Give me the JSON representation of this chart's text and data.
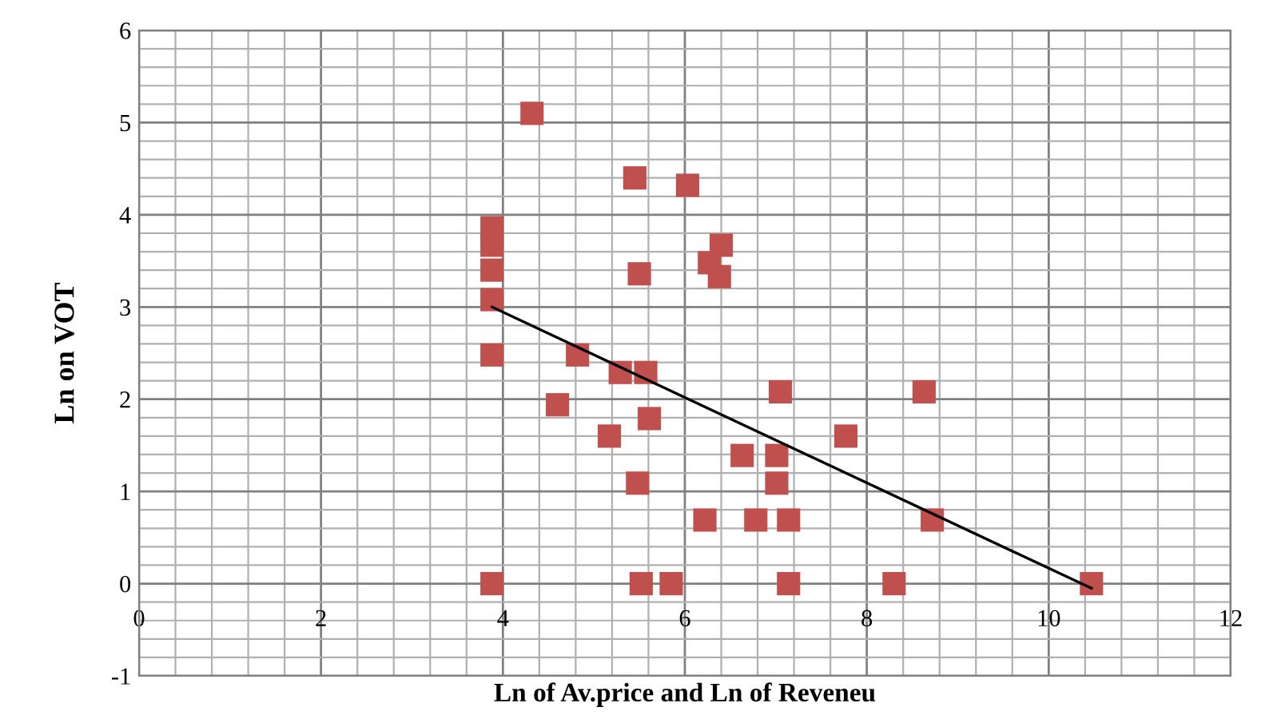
{
  "chart_data": {
    "type": "scatter",
    "xlabel": "Ln of Av.price and Ln of Reveneu",
    "ylabel": "Ln on VOT",
    "xlim": [
      0,
      12
    ],
    "ylim": [
      -1,
      6
    ],
    "xticks": [
      0,
      2,
      4,
      6,
      8,
      10,
      12
    ],
    "yticks": [
      -1,
      0,
      1,
      2,
      3,
      4,
      5,
      6
    ],
    "grid": true,
    "series": [
      {
        "color": "#c0504d",
        "x": [
          3.88,
          3.88,
          3.88,
          3.88,
          3.88,
          3.88,
          4.32,
          5.45,
          6.03,
          6.4,
          6.27,
          6.38,
          5.5,
          4.82,
          5.29,
          5.57,
          4.6,
          5.61,
          5.17,
          6.63,
          5.48,
          6.22,
          6.78,
          5.52,
          5.85,
          7.05,
          8.63,
          7.77,
          7.01,
          7.01,
          7.14,
          8.72,
          7.14,
          8.3,
          10.47
        ],
        "marker": "square",
        "values": [
          3.86,
          3.67,
          3.4,
          3.08,
          2.48,
          0,
          5.1,
          4.4,
          4.32,
          3.67,
          3.48,
          3.33,
          3.36,
          2.48,
          2.29,
          2.29,
          1.94,
          1.79,
          1.6,
          1.39,
          1.09,
          0.69,
          0.69,
          0,
          0,
          2.08,
          2.08,
          1.6,
          1.39,
          1.09,
          0.69,
          0.69,
          0,
          0,
          0
        ]
      },
      {
        "type": "line",
        "marker": "none",
        "color": "#000000",
        "x": [
          3.88,
          10.47
        ],
        "values": [
          3.0,
          -0.05
        ]
      }
    ]
  }
}
